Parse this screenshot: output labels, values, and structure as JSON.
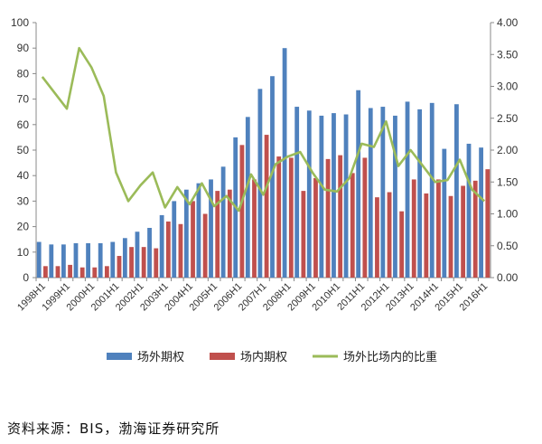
{
  "chart_data": {
    "type": "bar",
    "categories": [
      "1998H1",
      "1998H2",
      "1999H1",
      "1999H2",
      "2000H1",
      "2000H2",
      "2001H1",
      "2001H2",
      "2002H1",
      "2002H2",
      "2003H1",
      "2003H2",
      "2004H1",
      "2004H2",
      "2005H1",
      "2005H2",
      "2006H1",
      "2006H2",
      "2007H1",
      "2007H2",
      "2008H1",
      "2008H2",
      "2009H1",
      "2009H2",
      "2010H1",
      "2010H2",
      "2011H1",
      "2011H2",
      "2012H1",
      "2012H2",
      "2013H1",
      "2013H2",
      "2014H1",
      "2014H2",
      "2015H1",
      "2015H2",
      "2016H1"
    ],
    "x_tick_labels": [
      "1998H1",
      "1999H1",
      "2000H1",
      "2001H1",
      "2002H1",
      "2003H1",
      "2004H1",
      "2005H1",
      "2006H1",
      "2007H1",
      "2008H1",
      "2009H1",
      "2010H1",
      "2011H1",
      "2012H1",
      "2013H1",
      "2014H1",
      "2015H1",
      "2016H1"
    ],
    "series": [
      {
        "name": "场外期权",
        "type": "bar",
        "axis": "left",
        "color": "#4f81bd",
        "values": [
          14,
          13,
          13,
          13.5,
          13.5,
          13.5,
          14,
          15.5,
          18,
          19.5,
          24.5,
          30,
          34.5,
          37,
          38.5,
          43.5,
          55,
          63,
          74,
          79,
          90,
          67,
          65.5,
          63.5,
          64.5,
          64,
          73.5,
          66.5,
          67,
          63.5,
          69,
          66,
          68.5,
          50.5,
          68,
          52.5,
          51
        ]
      },
      {
        "name": "场内期权",
        "type": "bar",
        "axis": "left",
        "color": "#c0504d",
        "values": [
          4.5,
          4.5,
          5,
          4,
          4,
          4.5,
          8.5,
          12,
          12,
          11.5,
          22,
          21,
          30,
          25,
          34,
          34.5,
          52,
          38.5,
          56,
          47.5,
          47,
          34,
          39,
          46.5,
          48,
          41,
          47,
          31.5,
          33.5,
          26,
          38.5,
          33,
          38.5,
          32,
          36,
          38,
          42.5
        ]
      },
      {
        "name": "场外比场内的比重",
        "type": "line",
        "axis": "right",
        "color": "#9bbb59",
        "values": [
          3.15,
          2.9,
          2.65,
          3.6,
          3.3,
          2.85,
          1.65,
          1.2,
          1.45,
          1.65,
          1.1,
          1.42,
          1.15,
          1.48,
          1.12,
          1.28,
          1.05,
          1.62,
          1.3,
          1.78,
          1.9,
          1.97,
          1.65,
          1.38,
          1.35,
          1.56,
          2.1,
          2.05,
          2.45,
          1.75,
          2.0,
          1.75,
          1.5,
          1.53,
          1.85,
          1.38,
          1.2
        ]
      }
    ],
    "y_left": {
      "min": 0,
      "max": 100,
      "ticks": [
        "0",
        "10",
        "20",
        "30",
        "40",
        "50",
        "60",
        "70",
        "80",
        "90",
        "100"
      ]
    },
    "y_right": {
      "min": 0,
      "max": 4,
      "ticks": [
        "0.00",
        "0.50",
        "1.00",
        "1.50",
        "2.00",
        "2.50",
        "3.00",
        "3.50",
        "4.00"
      ]
    },
    "legend_position": "bottom",
    "grid": false
  },
  "source_text": "资料来源：BIS，渤海证券研究所"
}
